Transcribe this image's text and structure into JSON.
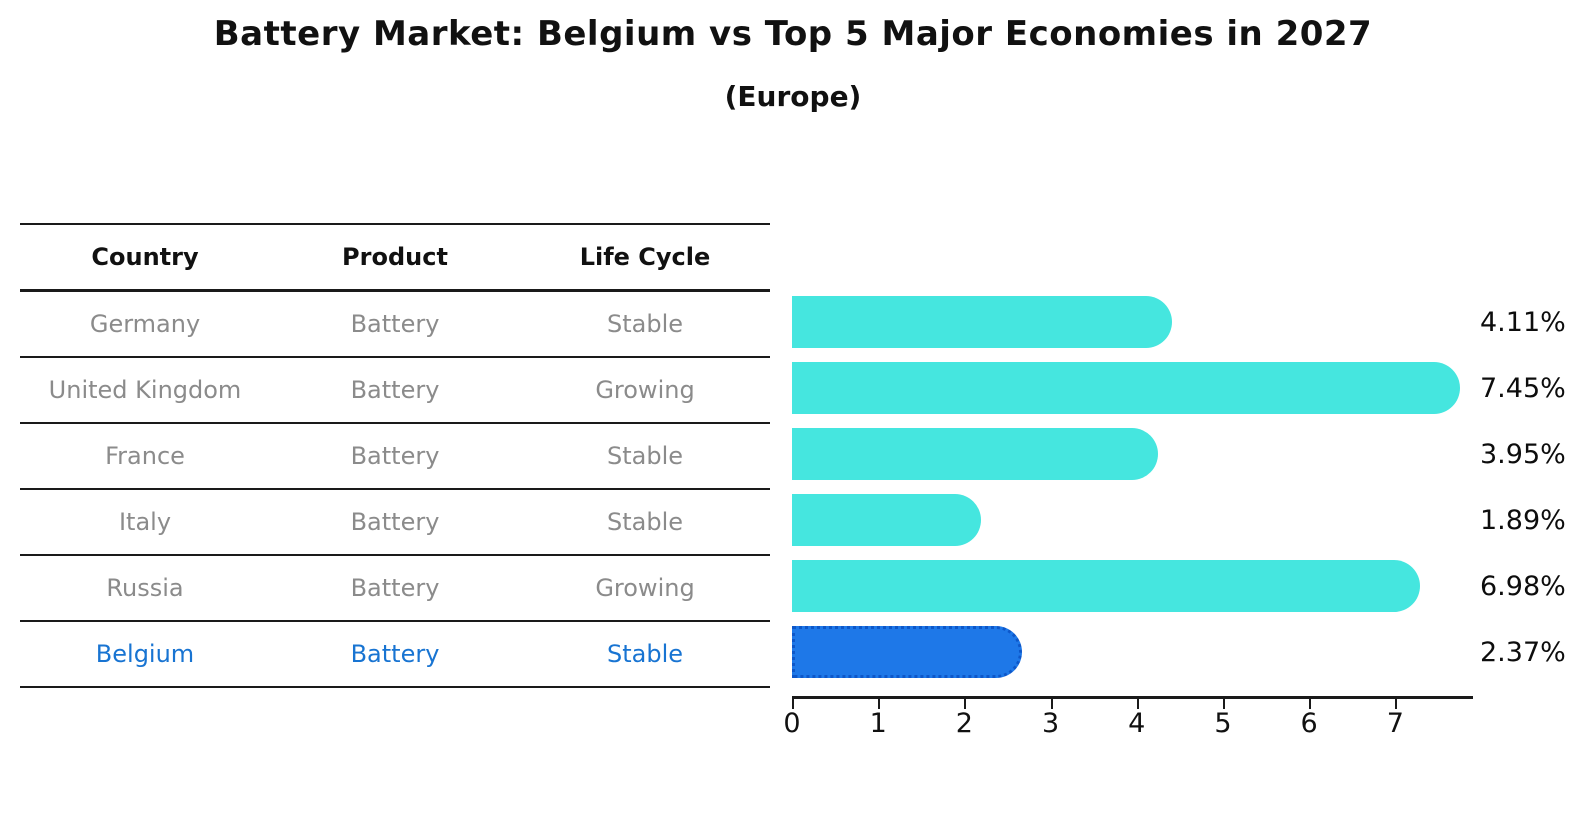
{
  "title": "Battery Market: Belgium vs Top 5 Major Economies in 2027",
  "subtitle": "(Europe)",
  "table": {
    "headers": [
      "Country",
      "Product",
      "Life Cycle"
    ],
    "rows": [
      {
        "country": "Germany",
        "product": "Battery",
        "life_cycle": "Stable",
        "highlight": false
      },
      {
        "country": "United Kingdom",
        "product": "Battery",
        "life_cycle": "Growing",
        "highlight": false
      },
      {
        "country": "France",
        "product": "Battery",
        "life_cycle": "Stable",
        "highlight": false
      },
      {
        "country": "Italy",
        "product": "Battery",
        "life_cycle": "Stable",
        "highlight": false
      },
      {
        "country": "Russia",
        "product": "Battery",
        "life_cycle": "Growing",
        "highlight": false
      },
      {
        "country": "Belgium",
        "product": "Battery",
        "life_cycle": "Stable",
        "highlight": true
      }
    ]
  },
  "chart_data": {
    "type": "bar",
    "orientation": "horizontal",
    "title": "Battery Market: Belgium vs Top 5 Major Economies in 2027",
    "subtitle": "(Europe)",
    "categories": [
      "Germany",
      "United Kingdom",
      "France",
      "Italy",
      "Russia",
      "Belgium"
    ],
    "values": [
      4.11,
      7.45,
      3.95,
      1.89,
      6.98,
      2.37
    ],
    "value_labels": [
      "4.11%",
      "7.45%",
      "3.95%",
      "1.89%",
      "6.98%",
      "2.37%"
    ],
    "x_ticks": [
      0,
      1,
      2,
      3,
      4,
      5,
      6,
      7
    ],
    "xlim": [
      0,
      7.89
    ],
    "xlabel": "",
    "ylabel": "",
    "grid": false,
    "legend": "none",
    "bar_color": "#45e6df",
    "highlight_index": 5,
    "highlight_color": "#1e78e8",
    "highlight_border_color": "#0d57c9",
    "highlight_text_color": "#1874d2",
    "row_text_color": "#8b8b8b"
  }
}
